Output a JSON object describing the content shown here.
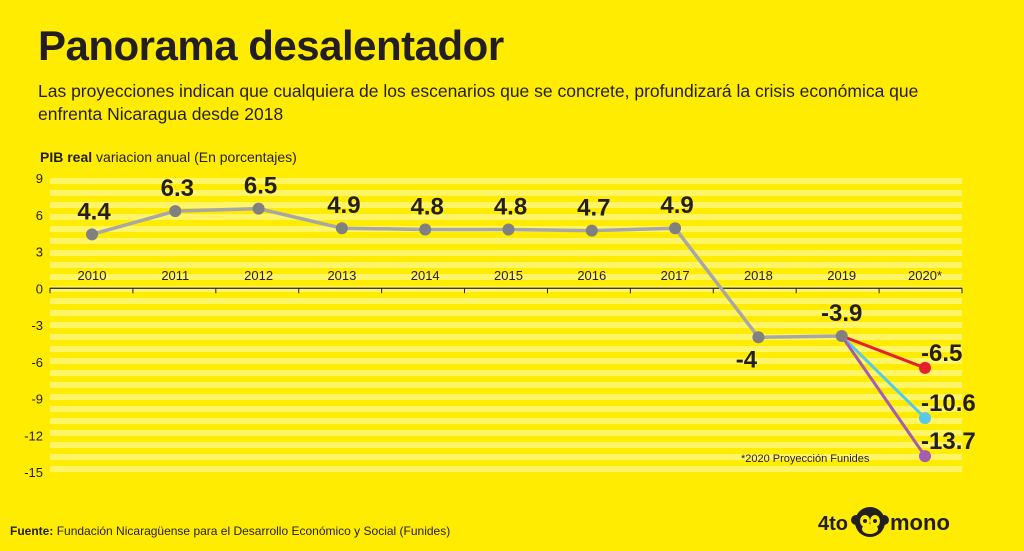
{
  "header": {
    "title": "Panorama desalentador",
    "subtitle": "Las proyecciones indican que cualquiera de los escenarios que se concrete, profundizará la crisis económica que enfrenta Nicaragua desde 2018"
  },
  "axis_label": {
    "bold": "PIB real",
    "rest": "variacion anual (En porcentajes)"
  },
  "note": "*2020 Proyección Funides",
  "source": {
    "label": "Fuente:",
    "text": "Fundación Nicaragüense para el Desarrollo Económico y Social (Funides)"
  },
  "logo": {
    "left": "4to",
    "right": "mono",
    "icon": "monkey-face-icon"
  },
  "colors": {
    "background": "#ffec00",
    "stripe": "#fff566",
    "main_line": "#a7a7a7",
    "marker": "#808080",
    "text": "#231f20",
    "projection_red": "#e4202d",
    "projection_cyan": "#59c8ea",
    "projection_purple": "#a35cb0"
  },
  "chart_data": {
    "type": "line",
    "title": "Panorama desalentador",
    "ylabel": "PIB real variacion anual (En porcentajes)",
    "ylim": [
      -15,
      9
    ],
    "yticks": [
      9,
      6,
      3,
      0,
      -3,
      -6,
      -9,
      -12,
      -15
    ],
    "categories": [
      "2010",
      "2011",
      "2012",
      "2013",
      "2014",
      "2015",
      "2016",
      "2017",
      "2018",
      "2019",
      "2020*"
    ],
    "series": [
      {
        "values": [
          4.4,
          6.3,
          6.5,
          4.9,
          4.8,
          4.8,
          4.7,
          4.9,
          -4,
          -3.9,
          null
        ],
        "labels": [
          "4.4",
          "6.3",
          "6.5",
          "4.9",
          "4.8",
          "4.8",
          "4.7",
          "4.9",
          "-4",
          "-3.9",
          ""
        ]
      }
    ],
    "projections": [
      {
        "from": "2019",
        "to": "2020*",
        "value": -6.5,
        "label": "-6.5",
        "color": "#e4202d"
      },
      {
        "from": "2019",
        "to": "2020*",
        "value": -10.6,
        "label": "-10.6",
        "color": "#59c8ea"
      },
      {
        "from": "2019",
        "to": "2020*",
        "value": -13.7,
        "label": "-13.7",
        "color": "#a35cb0"
      }
    ],
    "grid": "horizontal stripes"
  }
}
